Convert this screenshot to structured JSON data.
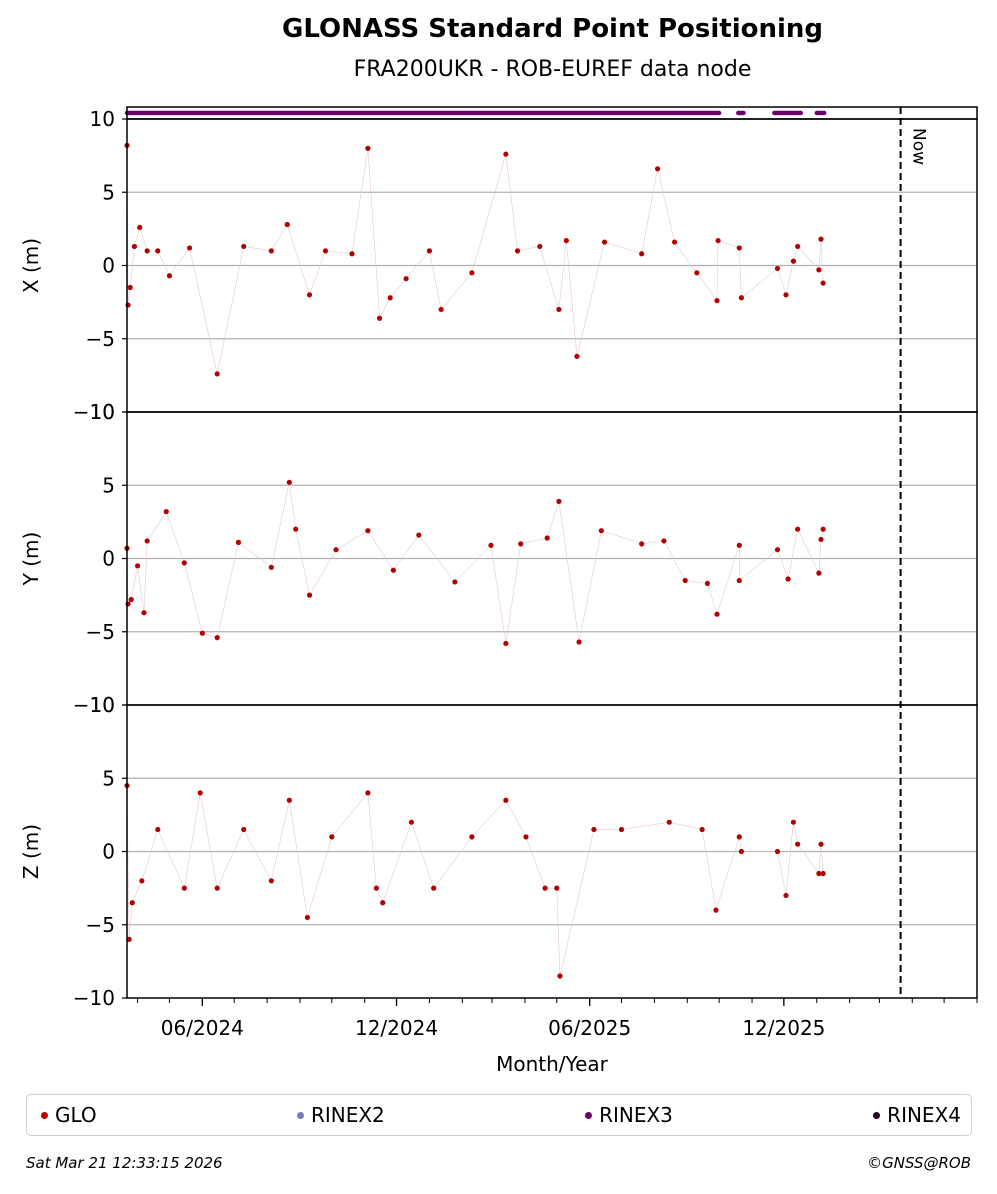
{
  "chart_data": {
    "type": "scatter",
    "title": "GLONASS Standard Point Positioning",
    "subtitle": "FRA200UKR - ROB-EUREF data node",
    "xlabel": "Month/Year",
    "x_ticks": [
      "06/2024",
      "12/2024",
      "06/2025",
      "12/2025"
    ],
    "x_range": [
      "2024-03-22",
      "2026-06-01"
    ],
    "now_label": "Now",
    "now_date": "2026-03-21",
    "grid": true,
    "legend_position": "bottom",
    "panels": [
      {
        "ylabel": "X (m)",
        "ylim": [
          -10,
          10
        ],
        "yticks": [
          "−10",
          "−5",
          "0",
          "5",
          "10"
        ],
        "series": [
          {
            "name": "GLO",
            "color": "#b30000",
            "points": [
              [
                "2024-03-22",
                8.2
              ],
              [
                "2024-03-23",
                -2.7
              ],
              [
                "2024-03-25",
                -1.5
              ],
              [
                "2024-03-29",
                1.3
              ],
              [
                "2024-04-03",
                2.6
              ],
              [
                "2024-04-10",
                1.0
              ],
              [
                "2024-04-20",
                1.0
              ],
              [
                "2024-05-01",
                -0.7
              ],
              [
                "2024-05-20",
                1.2
              ],
              [
                "2024-06-15",
                -7.4
              ],
              [
                "2024-07-10",
                1.3
              ],
              [
                "2024-08-05",
                1.0
              ],
              [
                "2024-08-20",
                2.8
              ],
              [
                "2024-09-10",
                -2.0
              ],
              [
                "2024-09-25",
                1.0
              ],
              [
                "2024-10-20",
                0.8
              ],
              [
                "2024-11-04",
                8.0
              ],
              [
                "2024-11-15",
                -3.6
              ],
              [
                "2024-11-25",
                -2.2
              ],
              [
                "2024-12-10",
                -0.9
              ],
              [
                "2025-01-01",
                1.0
              ],
              [
                "2025-01-12",
                -3.0
              ],
              [
                "2025-02-10",
                -0.5
              ],
              [
                "2025-03-14",
                7.6
              ],
              [
                "2025-03-25",
                1.0
              ],
              [
                "2025-04-15",
                1.3
              ],
              [
                "2025-05-03",
                -3.0
              ],
              [
                "2025-05-10",
                1.7
              ],
              [
                "2025-05-20",
                -6.2
              ],
              [
                "2025-06-15",
                1.6
              ],
              [
                "2025-07-20",
                0.8
              ],
              [
                "2025-08-04",
                6.6
              ],
              [
                "2025-08-20",
                1.6
              ],
              [
                "2025-09-10",
                -0.5
              ],
              [
                "2025-09-30",
                1.7
              ],
              [
                "2025-09-29",
                -2.4
              ],
              [
                "2025-10-20",
                1.2
              ],
              [
                "2025-10-22",
                -2.2
              ],
              [
                "2025-11-25",
                -0.2
              ],
              [
                "2025-12-03",
                -2.0
              ],
              [
                "2025-12-10",
                0.3
              ],
              [
                "2025-12-14",
                1.3
              ],
              [
                "2026-01-03",
                -0.3
              ],
              [
                "2026-01-05",
                1.8
              ],
              [
                "2026-01-07",
                -1.2
              ]
            ]
          }
        ]
      },
      {
        "ylabel": "Y (m)",
        "ylim": [
          -10,
          10
        ],
        "yticks": [
          "−10",
          "−5",
          "0",
          "5",
          "10"
        ],
        "series": [
          {
            "name": "GLO",
            "color": "#b30000",
            "points": [
              [
                "2024-03-22",
                0.7
              ],
              [
                "2024-03-23",
                -3.1
              ],
              [
                "2024-03-26",
                -2.8
              ],
              [
                "2024-04-01",
                -0.5
              ],
              [
                "2024-04-07",
                -3.7
              ],
              [
                "2024-04-10",
                1.2
              ],
              [
                "2024-04-28",
                3.2
              ],
              [
                "2024-05-15",
                -0.3
              ],
              [
                "2024-06-01",
                -5.1
              ],
              [
                "2024-06-15",
                -5.4
              ],
              [
                "2024-07-05",
                1.1
              ],
              [
                "2024-08-05",
                -0.6
              ],
              [
                "2024-08-22",
                5.2
              ],
              [
                "2024-08-28",
                2.0
              ],
              [
                "2024-09-10",
                -2.5
              ],
              [
                "2024-10-05",
                0.6
              ],
              [
                "2024-11-04",
                1.9
              ],
              [
                "2024-11-28",
                -0.8
              ],
              [
                "2024-12-22",
                1.6
              ],
              [
                "2025-01-25",
                -1.6
              ],
              [
                "2025-02-28",
                0.9
              ],
              [
                "2025-03-14",
                -5.8
              ],
              [
                "2025-03-28",
                1.0
              ],
              [
                "2025-04-22",
                1.4
              ],
              [
                "2025-05-03",
                3.9
              ],
              [
                "2025-05-22",
                -5.7
              ],
              [
                "2025-06-12",
                1.9
              ],
              [
                "2025-07-20",
                1.0
              ],
              [
                "2025-08-10",
                1.2
              ],
              [
                "2025-08-30",
                -1.5
              ],
              [
                "2025-09-20",
                -1.7
              ],
              [
                "2025-09-29",
                -3.8
              ],
              [
                "2025-10-20",
                0.9
              ],
              [
                "2025-10-20",
                -1.5
              ],
              [
                "2025-11-25",
                0.6
              ],
              [
                "2025-12-05",
                -1.4
              ],
              [
                "2025-12-14",
                2.0
              ],
              [
                "2026-01-03",
                -1.0
              ],
              [
                "2026-01-05",
                1.3
              ],
              [
                "2026-01-07",
                2.0
              ]
            ]
          }
        ]
      },
      {
        "ylabel": "Z (m)",
        "ylim": [
          -10,
          10
        ],
        "yticks": [
          "−10",
          "−5",
          "0",
          "5",
          "10"
        ],
        "series": [
          {
            "name": "GLO",
            "color": "#b30000",
            "points": [
              [
                "2024-03-22",
                4.5
              ],
              [
                "2024-03-24",
                -6.0
              ],
              [
                "2024-03-27",
                -3.5
              ],
              [
                "2024-04-05",
                -2.0
              ],
              [
                "2024-04-20",
                1.5
              ],
              [
                "2024-05-15",
                -2.5
              ],
              [
                "2024-05-30",
                4.0
              ],
              [
                "2024-06-15",
                -2.5
              ],
              [
                "2024-07-10",
                1.5
              ],
              [
                "2024-08-05",
                -2.0
              ],
              [
                "2024-08-22",
                3.5
              ],
              [
                "2024-09-08",
                -4.5
              ],
              [
                "2024-10-01",
                1.0
              ],
              [
                "2024-11-04",
                4.0
              ],
              [
                "2024-11-12",
                -2.5
              ],
              [
                "2024-11-18",
                -3.5
              ],
              [
                "2024-12-15",
                2.0
              ],
              [
                "2025-01-05",
                -2.5
              ],
              [
                "2025-02-10",
                1.0
              ],
              [
                "2025-03-14",
                3.5
              ],
              [
                "2025-04-02",
                1.0
              ],
              [
                "2025-04-20",
                -2.5
              ],
              [
                "2025-05-01",
                -2.5
              ],
              [
                "2025-05-04",
                -8.5
              ],
              [
                "2025-06-05",
                1.5
              ],
              [
                "2025-07-01",
                1.5
              ],
              [
                "2025-08-15",
                2.0
              ],
              [
                "2025-09-15",
                1.5
              ],
              [
                "2025-09-28",
                -4.0
              ],
              [
                "2025-10-20",
                1.0
              ],
              [
                "2025-10-22",
                0.0
              ],
              [
                "2025-11-25",
                0.0
              ],
              [
                "2025-12-03",
                -3.0
              ],
              [
                "2025-12-10",
                2.0
              ],
              [
                "2025-12-14",
                0.5
              ],
              [
                "2026-01-03",
                -1.5
              ],
              [
                "2026-01-05",
                0.5
              ],
              [
                "2026-01-07",
                -1.5
              ]
            ]
          }
        ]
      }
    ],
    "legend": [
      {
        "name": "GLO",
        "color": "#b30000"
      },
      {
        "name": "RINEX2",
        "color": "#7b7bb8"
      },
      {
        "name": "RINEX3",
        "color": "#6a006a"
      },
      {
        "name": "RINEX4",
        "color": "#25001e"
      }
    ]
  },
  "footer": {
    "timestamp": "Sat Mar 21 12:33:15 2026",
    "copyright": "©GNSS@ROB"
  }
}
